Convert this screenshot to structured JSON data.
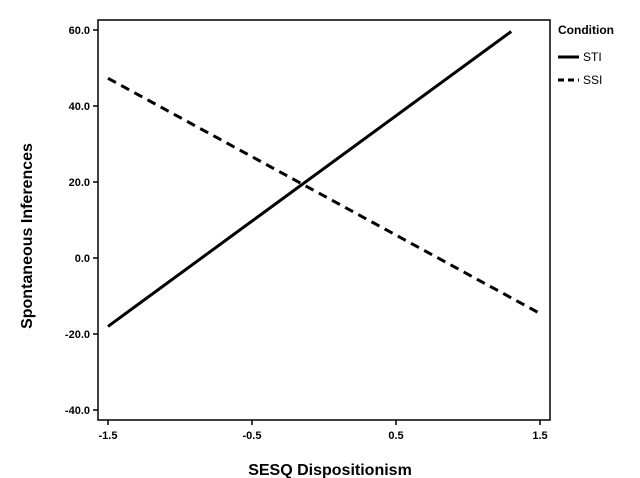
{
  "chart_data": {
    "type": "line",
    "xlabel": "SESQ Dispositionism",
    "ylabel": "Spontaneous Inferences",
    "xlim": [
      -1.5,
      1.5
    ],
    "ylim": [
      -40.0,
      60.0
    ],
    "x_ticks": [
      "-1.5",
      "-0.5",
      "0.5",
      "1.5"
    ],
    "y_ticks": [
      "60.0",
      "40.0",
      "20.0",
      "0.0",
      "-20.0",
      "-40.0"
    ],
    "legend_title": "Condition",
    "legend_position": "right",
    "grid": false,
    "series": [
      {
        "name": "STI",
        "style": "solid",
        "color": "#000000",
        "x": [
          -1.5,
          1.3
        ],
        "y": [
          -18.0,
          59.6
        ]
      },
      {
        "name": "SSI",
        "style": "dashed",
        "color": "#000000",
        "x": [
          -1.5,
          1.5
        ],
        "y": [
          47.3,
          -14.6
        ]
      }
    ]
  }
}
